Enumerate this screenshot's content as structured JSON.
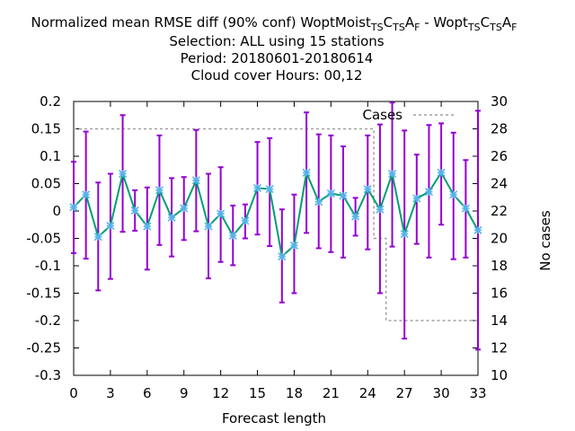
{
  "chart_data": {
    "type": "line",
    "title": {
      "line1_prefix": "Normalized mean RMSE diff (90% conf) WoptMoist",
      "line1_parts": [
        {
          "text": "T",
          "sub": true
        },
        {
          "text": "S",
          "sub": true
        },
        {
          "text": "C",
          "sub": false
        },
        {
          "text": "T",
          "sub": true
        },
        {
          "text": "S",
          "sub": true
        },
        {
          "text": "A",
          "sub": false
        },
        {
          "text": "F",
          "sub": true
        },
        {
          "text": " - Wopt",
          "sub": false
        },
        {
          "text": "T",
          "sub": true
        },
        {
          "text": "S",
          "sub": true
        },
        {
          "text": "C",
          "sub": false
        },
        {
          "text": "T",
          "sub": true
        },
        {
          "text": "S",
          "sub": true
        },
        {
          "text": "A",
          "sub": false
        },
        {
          "text": "F",
          "sub": true
        }
      ],
      "line2": "Selection: ALL using    15 stations",
      "line3": "Period: 20180601-20180614",
      "line4": "Cloud cover   Hours: 00,12"
    },
    "xlabel": "Forecast length",
    "y2label": "No cases",
    "xlim": [
      0,
      33
    ],
    "ylim": [
      -0.3,
      0.2
    ],
    "y2lim": [
      10,
      30
    ],
    "x_ticks": [
      "0",
      "3",
      "6",
      "9",
      "12",
      "15",
      "18",
      "21",
      "24",
      "27",
      "30",
      "33"
    ],
    "y_ticks": [
      "0.2",
      "0.15",
      "0.1",
      "0.05",
      "0",
      "-0.05",
      "-0.1",
      "-0.15",
      "-0.2",
      "-0.25",
      "-0.3"
    ],
    "y2_ticks": [
      "30",
      "28",
      "26",
      "24",
      "22",
      "20",
      "18",
      "16",
      "14",
      "12",
      "10"
    ],
    "legend": {
      "label": "Cases",
      "placement": "top-right"
    },
    "colors": {
      "errorbar": "#9400d3",
      "line": "#009e73",
      "marker": "#56b4e9",
      "cases": "#a0a0a0"
    },
    "series": [
      {
        "x": [
          0,
          1,
          2,
          3,
          4,
          5,
          6,
          7,
          8,
          9,
          10,
          11,
          12,
          13,
          14,
          15,
          16,
          17,
          18,
          19,
          20,
          21,
          22,
          23,
          24,
          25,
          26,
          27,
          28,
          29,
          30,
          31,
          32,
          33
        ],
        "values": [
          0.007,
          0.03,
          -0.047,
          -0.027,
          0.068,
          0.001,
          -0.028,
          0.038,
          -0.012,
          0.005,
          0.056,
          -0.028,
          -0.005,
          -0.045,
          -0.018,
          0.042,
          0.04,
          -0.083,
          -0.063,
          0.07,
          0.017,
          0.032,
          0.028,
          -0.01,
          0.04,
          0.003,
          0.068,
          -0.042,
          0.023,
          0.035,
          0.07,
          0.03,
          0.005,
          -0.035
        ],
        "lower": [
          -0.077,
          -0.087,
          -0.145,
          -0.124,
          -0.038,
          -0.036,
          -0.107,
          -0.062,
          -0.083,
          -0.053,
          -0.037,
          -0.123,
          -0.093,
          -0.099,
          -0.05,
          -0.043,
          -0.064,
          -0.167,
          -0.15,
          -0.04,
          -0.068,
          -0.075,
          -0.085,
          -0.045,
          -0.07,
          -0.15,
          -0.065,
          -0.233,
          -0.06,
          -0.085,
          -0.025,
          -0.088,
          -0.085,
          -0.253
        ],
        "upper": [
          0.09,
          0.145,
          0.052,
          0.068,
          0.175,
          0.038,
          0.043,
          0.138,
          0.06,
          0.062,
          0.148,
          0.068,
          0.08,
          0.01,
          0.012,
          0.126,
          0.133,
          0.003,
          0.03,
          0.18,
          0.14,
          0.138,
          0.118,
          0.024,
          0.138,
          0.158,
          0.198,
          0.147,
          0.103,
          0.157,
          0.16,
          0.143,
          0.093,
          0.183
        ]
      }
    ],
    "cases": {
      "x": [
        0,
        24.5,
        24.5,
        25.5,
        25.5,
        33
      ],
      "values": [
        28,
        28,
        20,
        20,
        14,
        14
      ]
    }
  }
}
